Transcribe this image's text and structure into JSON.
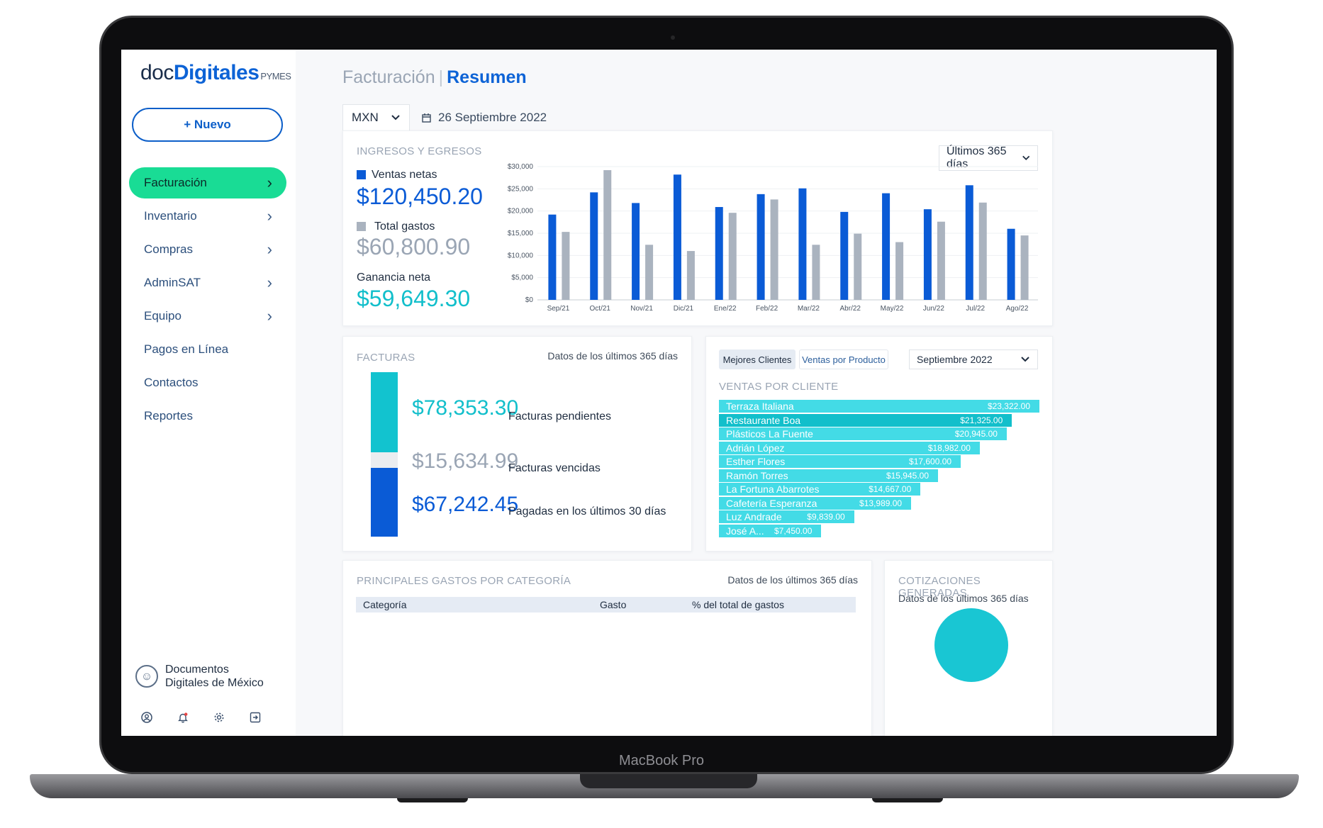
{
  "device": {
    "label": "MacBook Pro"
  },
  "sidebar": {
    "logo": {
      "part1": "doc",
      "part2": "Digitales",
      "suffix": "PYMES"
    },
    "new_button": "+ Nuevo",
    "items": [
      {
        "label": "Facturación",
        "active": true,
        "has_chevron": true
      },
      {
        "label": "Inventario",
        "has_chevron": true
      },
      {
        "label": "Compras",
        "has_chevron": true
      },
      {
        "label": "AdminSAT",
        "has_chevron": true
      },
      {
        "label": "Equipo",
        "has_chevron": true
      },
      {
        "label": "Pagos en Línea",
        "has_chevron": false
      },
      {
        "label": "Contactos",
        "has_chevron": false
      },
      {
        "label": "Reportes",
        "has_chevron": false
      }
    ],
    "company": {
      "line1": "Documentos",
      "line2": "Digitales de México"
    },
    "bottom_icons": [
      "user-icon",
      "bell-icon",
      "gear-icon",
      "logout-icon"
    ]
  },
  "header": {
    "breadcrumb_parent": "Facturación",
    "breadcrumb_separator": "|",
    "breadcrumb_current": "Resumen",
    "currency": "MXN",
    "date": "26 Septiembre 2022"
  },
  "income_card": {
    "title": "INGRESOS Y EGRESOS",
    "range": "Últimos 365 días",
    "sales_label": "Ventas netas",
    "sales_value": "$120,450.20",
    "expenses_label": "Total gastos",
    "expenses_value": "$60,800.90",
    "profit_label": "Ganancia neta",
    "profit_value": "$59,649.30"
  },
  "chart_data": {
    "type": "bar",
    "categories": [
      "Sep/21",
      "Oct/21",
      "Nov/21",
      "Dic/21",
      "Ene/22",
      "Feb/22",
      "Mar/22",
      "Abr/22",
      "May/22",
      "Jun/22",
      "Jul/22",
      "Ago/22"
    ],
    "series": [
      {
        "name": "Ventas netas",
        "color": "#0a5bd6",
        "values": [
          19200,
          24200,
          21800,
          28200,
          20900,
          23800,
          25100,
          19800,
          24000,
          20400,
          25800,
          16000
        ]
      },
      {
        "name": "Total gastos",
        "color": "#aab3bf",
        "values": [
          15300,
          29200,
          12400,
          11000,
          19600,
          22600,
          12400,
          14900,
          13000,
          17600,
          21900,
          14500
        ]
      }
    ],
    "y_ticks": [
      "$0",
      "$5,000",
      "$10,000",
      "$15,000",
      "$20,000",
      "$25,000",
      "$30,000"
    ],
    "ylim": [
      0,
      30000
    ],
    "grid": true
  },
  "invoices_card": {
    "title": "FACTURAS",
    "note": "Datos de los últimos 365 días",
    "items": [
      {
        "value": "$78,353.30",
        "label": "Facturas pendientes",
        "amount": 78353.3,
        "color": "#12c3cf"
      },
      {
        "value": "$15,634.99",
        "label": "Facturas vencidas",
        "amount": 15634.99,
        "color": "#ebedf0"
      },
      {
        "value": "$67,242.45",
        "label": "Pagadas en los últimos 30 días",
        "amount": 67242.45,
        "color": "#0a5bd6"
      }
    ]
  },
  "clients_card": {
    "tab1": "Mejores Clientes",
    "tab2": "Ventas por Producto",
    "month": "Septiembre 2022",
    "title": "VENTAS POR CLIENTE",
    "max_value": 23322,
    "clients": [
      {
        "name": "Terraza Italiana",
        "amount": "$23,322.00",
        "value": 23322,
        "color": "#43dbe6"
      },
      {
        "name": "Restaurante Boa",
        "amount": "$21,325.00",
        "value": 21325,
        "color": "#12bfcb"
      },
      {
        "name": "Plásticos La Fuente",
        "amount": "$20,945.00",
        "value": 20945,
        "color": "#43dbe6"
      },
      {
        "name": "Adrián López",
        "amount": "$18,982.00",
        "value": 18982,
        "color": "#43dbe6"
      },
      {
        "name": "Esther Flores",
        "amount": "$17,600.00",
        "value": 17600,
        "color": "#43dbe6"
      },
      {
        "name": "Ramón Torres",
        "amount": "$15,945.00",
        "value": 15945,
        "color": "#43dbe6"
      },
      {
        "name": "La Fortuna Abarrotes",
        "amount": "$14,667.00",
        "value": 14667,
        "color": "#43dbe6"
      },
      {
        "name": "Cafetería Esperanza",
        "amount": "$13,989.00",
        "value": 13989,
        "color": "#43dbe6"
      },
      {
        "name": "Luz Andrade",
        "amount": "$9,839.00",
        "value": 9839,
        "color": "#43dbe6"
      },
      {
        "name": "José A...",
        "amount": "$7,450.00",
        "value": 7450,
        "color": "#43dbe6"
      }
    ]
  },
  "expenses_card": {
    "title": "PRINCIPALES GASTOS POR CATEGORÍA",
    "note": "Datos de los últimos 365 días",
    "col_category": "Categoría",
    "col_expense": "Gasto",
    "col_percent": "% del total de gastos"
  },
  "quotes_card": {
    "title": "COTIZACIONES GENERADAS",
    "note": "Datos de los últimos 365 días"
  }
}
